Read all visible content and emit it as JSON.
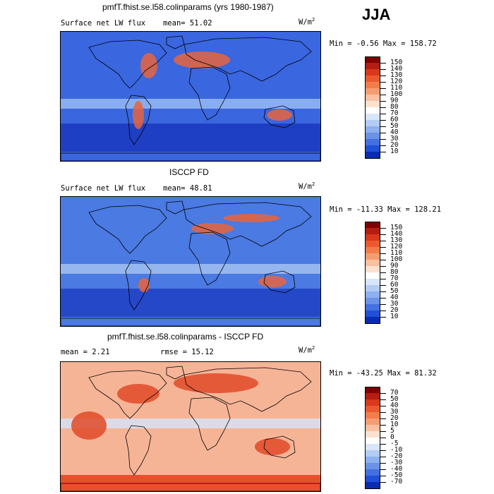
{
  "season": "JJA",
  "units_base": "W/m",
  "units_exp": "2",
  "panels": [
    {
      "title": "pmfT.fhist.se.l58.colinparams (yrs 1980-1987)",
      "left_label": "Surface net LW flux",
      "mid_label": "mean=  51.02",
      "minmax": "Min =  -0.56 Max = 158.72",
      "colorbar": {
        "labels": [
          "150",
          "140",
          "130",
          "120",
          "110",
          "100",
          "90",
          "80",
          "70",
          "60",
          "50",
          "40",
          "30",
          "20",
          "10"
        ],
        "colors": [
          "#7f0000",
          "#b41d12",
          "#d8391c",
          "#ea5a2e",
          "#f27d4a",
          "#f59d72",
          "#f9c0a2",
          "#fde1cf",
          "#ffffff",
          "#d8e6fb",
          "#b3ccf5",
          "#8db0ee",
          "#6a92e6",
          "#4470e0",
          "#2050d8",
          "#0a2cb0"
        ]
      },
      "regions": {
        "base": "#3a66e0",
        "bands": [
          {
            "color": "#1e3fc4",
            "name": "south ocean"
          },
          {
            "color": "#9ec0f2",
            "name": "subtropics"
          }
        ]
      }
    },
    {
      "title": "ISCCP FD",
      "left_label": "Surface net LW flux",
      "mid_label": "mean=  48.81",
      "minmax": "Min = -11.33 Max = 128.21",
      "colorbar": {
        "labels": [
          "150",
          "140",
          "130",
          "120",
          "110",
          "100",
          "90",
          "80",
          "70",
          "60",
          "50",
          "40",
          "30",
          "20",
          "10"
        ],
        "colors": [
          "#7f0000",
          "#b41d12",
          "#d8391c",
          "#ea5a2e",
          "#f27d4a",
          "#f59d72",
          "#f9c0a2",
          "#fde1cf",
          "#ffffff",
          "#d8e6fb",
          "#b3ccf5",
          "#8db0ee",
          "#6a92e6",
          "#4470e0",
          "#2050d8",
          "#0a2cb0"
        ]
      },
      "regions": {
        "base": "#4a7ae2",
        "bands": [
          {
            "color": "#2448c8",
            "name": "south ocean"
          },
          {
            "color": "#a9c6f3",
            "name": "subtropics"
          }
        ]
      }
    },
    {
      "title": "pmfT.fhist.se.l58.colinparams - ISCCP FD",
      "left_label": "mean =   2.21",
      "mid_label": "rmse =  15.12",
      "minmax": "Min = -43.25  Max =  81.32",
      "colorbar": {
        "labels": [
          "70",
          "50",
          "40",
          "30",
          "20",
          "10",
          "5",
          "0",
          "-5",
          "-10",
          "-20",
          "-30",
          "-40",
          "-50",
          "-70"
        ],
        "colors": [
          "#7f0000",
          "#b41d12",
          "#d8391c",
          "#ea5a2e",
          "#f27d4a",
          "#f59d72",
          "#f9c0a2",
          "#fde1cf",
          "#ffffff",
          "#d8e6fb",
          "#b3ccf5",
          "#8db0ee",
          "#6a92e6",
          "#4470e0",
          "#2050d8",
          "#0a2cb0"
        ]
      },
      "regions": {
        "base": "#f6b496",
        "bands": [
          {
            "color": "#e8502c",
            "name": "antarctic"
          },
          {
            "color": "#d6e3fa",
            "name": "tropics"
          }
        ]
      }
    }
  ]
}
